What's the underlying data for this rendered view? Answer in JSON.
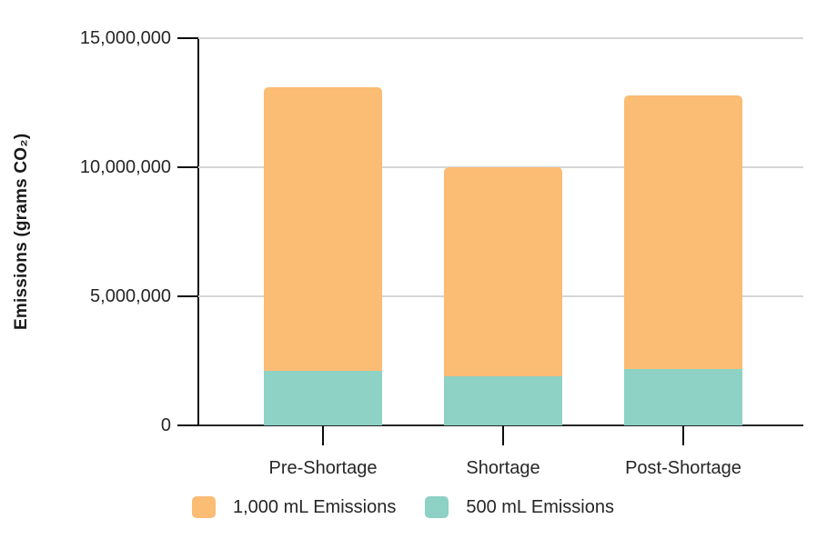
{
  "chart_data": {
    "type": "bar",
    "stacked": true,
    "title": "",
    "xlabel": "",
    "ylabel": "Emissions (grams CO₂)",
    "categories": [
      "Pre-Shortage",
      "Shortage",
      "Post-Shortage"
    ],
    "series": [
      {
        "name": "500 mL Emissions",
        "color": "#8ED1C5",
        "values": [
          2100000,
          1900000,
          2200000
        ]
      },
      {
        "name": "1,000 mL Emissions",
        "color": "#FBBC74",
        "values": [
          11000000,
          8100000,
          10600000
        ]
      }
    ],
    "stack_totals": [
      13100000,
      10000000,
      12800000
    ],
    "ylim": [
      0,
      15000000
    ],
    "yticks": [
      0,
      5000000,
      10000000,
      15000000
    ],
    "ytick_labels": [
      "0",
      "5,000,000",
      "10,000,000",
      "15,000,000"
    ],
    "grid": true,
    "gridline_color": "#D6D6D6",
    "axis_color": "#0D0D0D",
    "text_color": "#262626",
    "background_color": "#FFFFFF",
    "legend_position": "bottom",
    "legend_order": [
      "1,000 mL Emissions",
      "500 mL Emissions"
    ]
  }
}
